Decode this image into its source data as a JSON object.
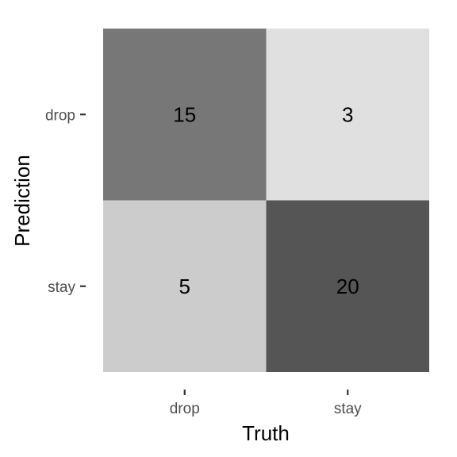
{
  "chart_data": {
    "type": "heatmap",
    "title": "",
    "xlabel": "Truth",
    "ylabel": "Prediction",
    "x_categories": [
      "drop",
      "stay"
    ],
    "y_categories": [
      "drop",
      "stay"
    ],
    "cells": [
      {
        "truth": "drop",
        "prediction": "drop",
        "value": 15,
        "color": "#777777"
      },
      {
        "truth": "stay",
        "prediction": "drop",
        "value": 3,
        "color": "#e0e0e0"
      },
      {
        "truth": "drop",
        "prediction": "stay",
        "value": 5,
        "color": "#cccccc"
      },
      {
        "truth": "stay",
        "prediction": "stay",
        "value": 20,
        "color": "#555555"
      }
    ],
    "grid": false,
    "legend": "none"
  }
}
